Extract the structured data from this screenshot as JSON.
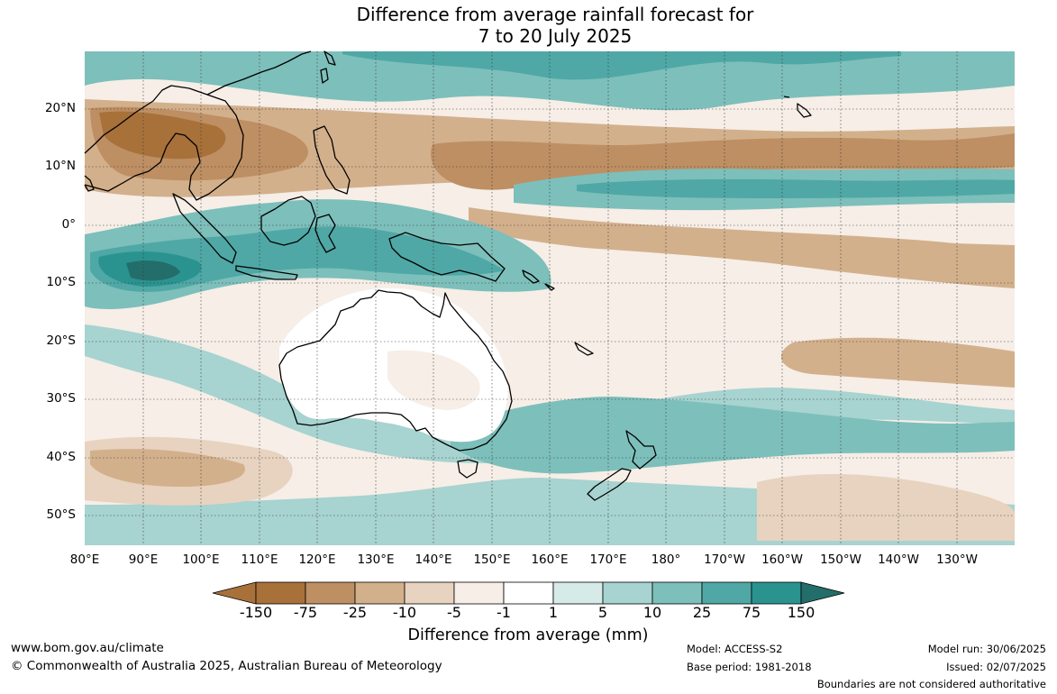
{
  "title": {
    "line1": "Difference from average rainfall forecast for",
    "line2": "7 to 20 July 2025"
  },
  "map": {
    "latitude_labels": [
      "20°N",
      "10°N",
      "0°",
      "10°S",
      "20°S",
      "30°S",
      "40°S",
      "50°S"
    ],
    "longitude_labels": [
      "80°E",
      "90°E",
      "100°E",
      "110°E",
      "120°E",
      "130°E",
      "140°E",
      "150°E",
      "160°E",
      "170°E",
      "180°",
      "170°W",
      "160°W",
      "150°W",
      "140°W",
      "130°W"
    ]
  },
  "colorbar": {
    "ticks": [
      "-150",
      "-75",
      "-25",
      "-10",
      "-5",
      "-1",
      "1",
      "5",
      "10",
      "25",
      "75",
      "150"
    ],
    "colors": [
      "#a8713a",
      "#be8f63",
      "#d3b08c",
      "#e7d3bf",
      "#f6eee7",
      "#ffffff",
      "#d6eae8",
      "#a7d3d0",
      "#7dbfbb",
      "#4fa8a5",
      "#2b938f",
      "#236e6a"
    ],
    "title": "Difference from average (mm)"
  },
  "footer": {
    "website": "www.bom.gov.au/climate",
    "copyright": "© Commonwealth of Australia 2025, Australian Bureau of Meteorology",
    "model": "Model: ACCESS-S2",
    "base_period": "Base period: 1981-2018",
    "model_run": "Model run: 30/06/2025",
    "issued": "Issued: 02/07/2025",
    "disclaimer": "Boundaries are not considered authoritative"
  }
}
